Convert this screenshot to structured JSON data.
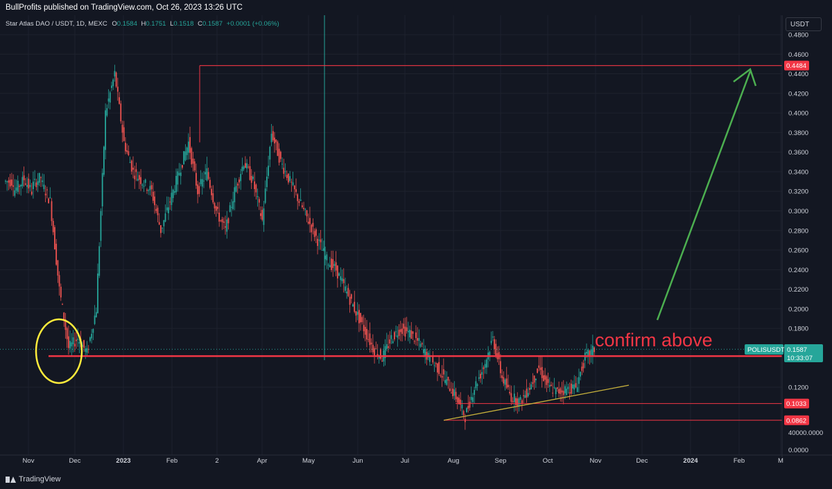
{
  "header": {
    "publisher_line": "BullProfits published on TradingView.com, Oct 26, 2023 13:26 UTC"
  },
  "legend": {
    "symbol": "Star Atlas DAO / USDT, 1D, MEXC",
    "o_label": "O",
    "o_value": "0.1584",
    "h_label": "H",
    "h_value": "0.1751",
    "l_label": "L",
    "l_value": "0.1518",
    "c_label": "C",
    "c_value": "0.1587",
    "change": "+0.0001 (+0.06%)"
  },
  "toolbar": {
    "currency_label": "USDT"
  },
  "footer": {
    "brand": "TradingView"
  },
  "annotations": {
    "confirm_text": "confirm above",
    "last_symbol": "POLISUSDT",
    "last_price": "0.1587",
    "countdown": "10:33:07",
    "volume_tick": "40000.0000",
    "zero_tick": "0.0000"
  },
  "colors": {
    "background": "#131722",
    "bull": "#26a69a",
    "bear": "#ef5350",
    "level_line": "#f23645",
    "trend_line": "#c8b23c",
    "arrow": "#4caf50",
    "highlight_circle": "#ffeb3b",
    "text": "#d1d4dc"
  },
  "chart_data": {
    "type": "candlestick",
    "title": "Star Atlas DAO / USDT, 1D, MEXC",
    "ylabel": "USDT",
    "yscale": "linear",
    "ylim": [
      0.0,
      0.49
    ],
    "y_ticks": [
      "0.4800",
      "0.4600",
      "0.4400",
      "0.4200",
      "0.4000",
      "0.3800",
      "0.3600",
      "0.3400",
      "0.3200",
      "0.3000",
      "0.2800",
      "0.2600",
      "0.2400",
      "0.2200",
      "0.2000",
      "0.1800",
      "0.1200"
    ],
    "x_ticks": [
      "Nov",
      "Dec",
      "2023",
      "Feb",
      "2",
      "Apr",
      "May",
      "Jun",
      "Jul",
      "Aug",
      "Sep",
      "Oct",
      "Nov",
      "Dec",
      "2024",
      "Feb",
      "M"
    ],
    "price_levels": [
      {
        "label": "0.4484",
        "value": 0.4484
      },
      {
        "label": "0.1517",
        "value": 0.1517
      },
      {
        "label": "0.1033",
        "value": 0.1033
      },
      {
        "label": "0.0862",
        "value": 0.0862
      }
    ],
    "last_price": 0.1587,
    "series": [
      {
        "name": "POLISUSDT",
        "points": [
          [
            0.33,
            0.33
          ],
          [
            0.32,
            0.33
          ],
          [
            0.335,
            0.32
          ],
          [
            0.325,
            0.335
          ],
          [
            0.33,
            0.31
          ],
          [
            0.31,
            0.22
          ],
          [
            0.22,
            0.16
          ],
          [
            0.16,
            0.17
          ],
          [
            0.17,
            0.155
          ],
          [
            0.155,
            0.2
          ],
          [
            0.2,
            0.4
          ],
          [
            0.4,
            0.44
          ],
          [
            0.44,
            0.37
          ],
          [
            0.37,
            0.34
          ],
          [
            0.34,
            0.33
          ],
          [
            0.33,
            0.32
          ],
          [
            0.32,
            0.28
          ],
          [
            0.28,
            0.31
          ],
          [
            0.31,
            0.34
          ],
          [
            0.34,
            0.37
          ],
          [
            0.37,
            0.32
          ],
          [
            0.32,
            0.34
          ],
          [
            0.34,
            0.3
          ],
          [
            0.3,
            0.28
          ],
          [
            0.28,
            0.32
          ],
          [
            0.32,
            0.35
          ],
          [
            0.35,
            0.33
          ],
          [
            0.33,
            0.29
          ],
          [
            0.29,
            0.38
          ],
          [
            0.38,
            0.35
          ],
          [
            0.35,
            0.33
          ],
          [
            0.33,
            0.31
          ],
          [
            0.31,
            0.29
          ],
          [
            0.29,
            0.27
          ],
          [
            0.27,
            0.25
          ],
          [
            0.25,
            0.24
          ],
          [
            0.24,
            0.22
          ],
          [
            0.22,
            0.2
          ],
          [
            0.2,
            0.18
          ],
          [
            0.18,
            0.16
          ],
          [
            0.16,
            0.15
          ],
          [
            0.15,
            0.17
          ],
          [
            0.17,
            0.18
          ],
          [
            0.18,
            0.175
          ],
          [
            0.175,
            0.165
          ],
          [
            0.165,
            0.15
          ],
          [
            0.15,
            0.14
          ],
          [
            0.14,
            0.125
          ],
          [
            0.125,
            0.11
          ],
          [
            0.11,
            0.09
          ],
          [
            0.09,
            0.12
          ],
          [
            0.12,
            0.14
          ],
          [
            0.14,
            0.17
          ],
          [
            0.17,
            0.13
          ],
          [
            0.13,
            0.11
          ],
          [
            0.11,
            0.105
          ],
          [
            0.105,
            0.12
          ],
          [
            0.12,
            0.14
          ],
          [
            0.14,
            0.12
          ],
          [
            0.12,
            0.115
          ],
          [
            0.115,
            0.118
          ],
          [
            0.118,
            0.12
          ],
          [
            0.12,
            0.15
          ],
          [
            0.15,
            0.1587
          ]
        ]
      }
    ]
  }
}
